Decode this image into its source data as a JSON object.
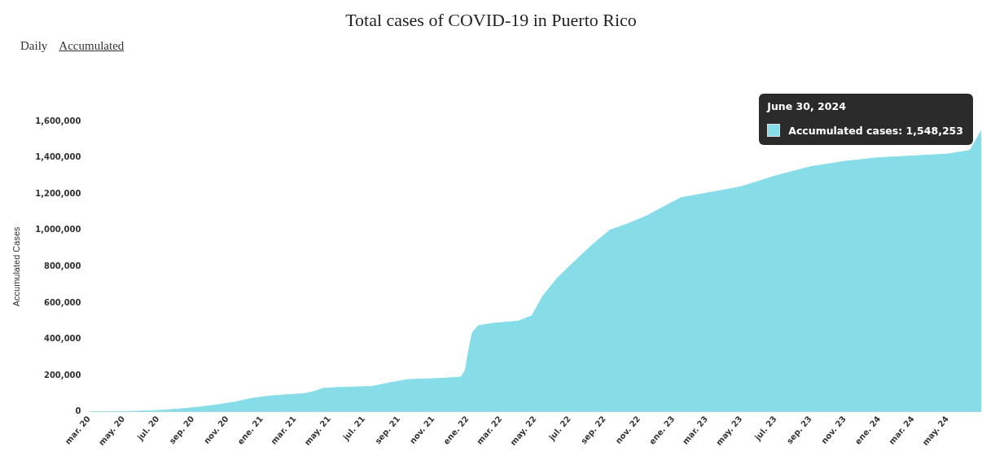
{
  "chart_data": {
    "type": "area",
    "title": "Total cases of COVID-19 in Puerto Rico",
    "ylabel": "Accumulated Cases",
    "annotations": [
      "Daily",
      "Accumulated",
      "June 30, 2024",
      "Accumulated cases: 1,548,253"
    ],
    "x": [
      "2020-03-01",
      "2020-05-01",
      "2020-07-01",
      "2020-08-15",
      "2020-09-15",
      "2020-10-15",
      "2020-11-15",
      "2020-12-15",
      "2021-01-15",
      "2021-02-15",
      "2021-03-15",
      "2021-04-01",
      "2021-04-20",
      "2021-05-15",
      "2021-07-15",
      "2021-08-15",
      "2021-09-15",
      "2021-11-15",
      "2021-12-20",
      "2021-12-28",
      "2022-01-03",
      "2022-01-10",
      "2022-01-20",
      "2022-02-15",
      "2022-04-01",
      "2022-04-25",
      "2022-05-15",
      "2022-06-10",
      "2022-07-10",
      "2022-08-10",
      "2022-09-10",
      "2022-10-15",
      "2022-11-15",
      "2022-12-15",
      "2023-01-15",
      "2023-03-01",
      "2023-05-01",
      "2023-07-01",
      "2023-09-01",
      "2023-11-01",
      "2024-01-01",
      "2024-03-01",
      "2024-05-01",
      "2024-06-10",
      "2024-06-30"
    ],
    "series": [
      {
        "color": "#86dde8",
        "values": [
          0,
          2000,
          8000,
          18000,
          28000,
          40000,
          55000,
          75000,
          88000,
          95000,
          100000,
          110000,
          130000,
          135000,
          140000,
          160000,
          178000,
          185000,
          192000,
          230000,
          340000,
          440000,
          475000,
          488000,
          500000,
          530000,
          640000,
          740000,
          830000,
          920000,
          1000000,
          1040000,
          1080000,
          1130000,
          1180000,
          1205000,
          1240000,
          1300000,
          1350000,
          1380000,
          1400000,
          1410000,
          1420000,
          1440000,
          1548253
        ]
      }
    ],
    "xlim": [
      "2020-03-01",
      "2024-06-30"
    ],
    "xticks": [
      {
        "value": "2020-03-01",
        "label": "mar. 20"
      },
      {
        "value": "2020-05-01",
        "label": "may. 20"
      },
      {
        "value": "2020-07-01",
        "label": "jul. 20"
      },
      {
        "value": "2020-09-01",
        "label": "sep. 20"
      },
      {
        "value": "2020-11-01",
        "label": "nov. 20"
      },
      {
        "value": "2021-01-01",
        "label": "ene. 21"
      },
      {
        "value": "2021-03-01",
        "label": "mar. 21"
      },
      {
        "value": "2021-05-01",
        "label": "may. 21"
      },
      {
        "value": "2021-07-01",
        "label": "jul. 21"
      },
      {
        "value": "2021-09-01",
        "label": "sep. 21"
      },
      {
        "value": "2021-11-01",
        "label": "nov. 21"
      },
      {
        "value": "2022-01-01",
        "label": "ene. 22"
      },
      {
        "value": "2022-03-01",
        "label": "mar. 22"
      },
      {
        "value": "2022-05-01",
        "label": "may. 22"
      },
      {
        "value": "2022-07-01",
        "label": "jul. 22"
      },
      {
        "value": "2022-09-01",
        "label": "sep. 22"
      },
      {
        "value": "2022-11-01",
        "label": "nov. 22"
      },
      {
        "value": "2023-01-01",
        "label": "ene. 23"
      },
      {
        "value": "2023-03-01",
        "label": "mar. 23"
      },
      {
        "value": "2023-05-01",
        "label": "may. 23"
      },
      {
        "value": "2023-07-01",
        "label": "jul. 23"
      },
      {
        "value": "2023-09-01",
        "label": "sep. 23"
      },
      {
        "value": "2023-11-01",
        "label": "nov. 23"
      },
      {
        "value": "2024-01-01",
        "label": "ene. 24"
      },
      {
        "value": "2024-03-01",
        "label": "mar. 24"
      },
      {
        "value": "2024-05-01",
        "label": "may. 24"
      }
    ],
    "ylim": [
      0,
      1600000
    ],
    "yticks": [
      {
        "value": 0,
        "label": "0"
      },
      {
        "value": 200000,
        "label": "200,000"
      },
      {
        "value": 400000,
        "label": "400,000"
      },
      {
        "value": 600000,
        "label": "600,000"
      },
      {
        "value": 800000,
        "label": "800,000"
      },
      {
        "value": 1000000,
        "label": "1,000,000"
      },
      {
        "value": 1200000,
        "label": "1,200,000"
      },
      {
        "value": 1400000,
        "label": "1,400,000"
      },
      {
        "value": 1600000,
        "label": "1,600,000"
      }
    ],
    "grid": false,
    "legend": false,
    "marker": "none"
  }
}
